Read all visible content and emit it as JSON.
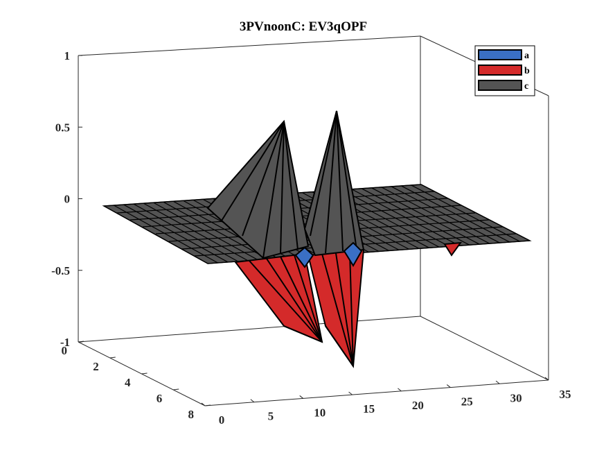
{
  "chart_data": {
    "type": "surface3d",
    "title": "3PVnoonC: EV3qOPF",
    "xlabel": "",
    "ylabel": "",
    "zlabel": "",
    "xlim": [
      0,
      35
    ],
    "ylim": [
      0,
      8
    ],
    "zlim": [
      -1,
      1
    ],
    "x_ticks": [
      "0",
      "5",
      "10",
      "15",
      "20",
      "25",
      "30",
      "35"
    ],
    "y_ticks": [
      "0",
      "2",
      "4",
      "6",
      "8"
    ],
    "z_ticks": [
      "-1",
      "-0.5",
      "0",
      "0.5",
      "1"
    ],
    "grid": false,
    "legend_position": "top-right",
    "series": [
      {
        "name": "a",
        "color": "#3a6fc4",
        "description_value": "small negative dips near peaks"
      },
      {
        "name": "b",
        "color": "#d42a2a",
        "description_value": "negative lobes reaching about -1"
      },
      {
        "name": "c",
        "color": "#545454",
        "description_value": "positive peaks reaching about 0.5 and 0.6"
      }
    ],
    "features": [
      {
        "series": "c",
        "x": 11,
        "y": 4,
        "z": 0.52
      },
      {
        "series": "c",
        "x": 16,
        "y": 4,
        "z": 0.62
      },
      {
        "series": "b",
        "x": 12,
        "y": 7,
        "z": -1.0
      },
      {
        "series": "b",
        "x": 17,
        "y": 8,
        "z": -1.25
      },
      {
        "series": "a",
        "x": 13,
        "y": 6,
        "z": -0.45
      },
      {
        "series": "a",
        "x": 18,
        "y": 6,
        "z": -0.45
      },
      {
        "series": "b",
        "x": 31,
        "y": 5,
        "z": -0.2
      }
    ]
  }
}
